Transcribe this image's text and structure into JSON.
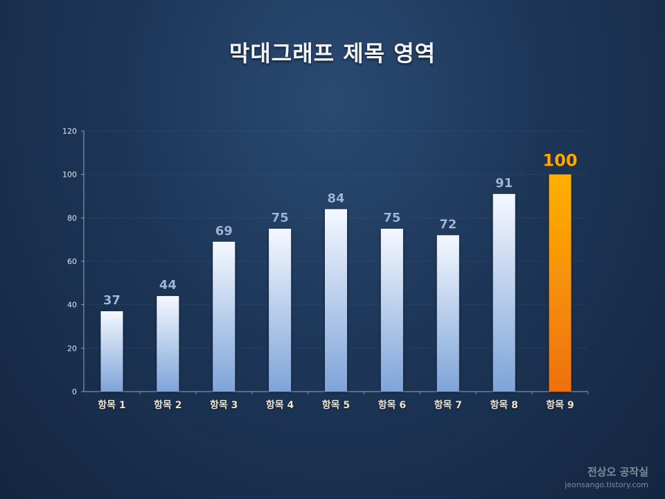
{
  "chart_data": {
    "type": "bar",
    "title": "막대그래프 제목 영역",
    "categories": [
      "항목 1",
      "항목 2",
      "항목 3",
      "항목 4",
      "항목 5",
      "항목 6",
      "항목 7",
      "항목 8",
      "항목 9"
    ],
    "values": [
      37,
      44,
      69,
      75,
      84,
      75,
      72,
      91,
      100
    ],
    "highlight_index": 8,
    "ylim": [
      0,
      120
    ],
    "yticks": [
      0,
      20,
      40,
      60,
      80,
      100,
      120
    ],
    "grid": true,
    "xlabel": "",
    "ylabel": ""
  },
  "colors": {
    "bar_top": "#f4f8ff",
    "bar_bottom": "#7ea4d8",
    "highlight_top": "#ffb000",
    "highlight_bottom": "#ee7010",
    "label": "#9fb8d8",
    "highlight_label": "#ffa800"
  },
  "watermark": {
    "name": "전상오 공작실",
    "url": "jeonsango.tistory.com"
  }
}
